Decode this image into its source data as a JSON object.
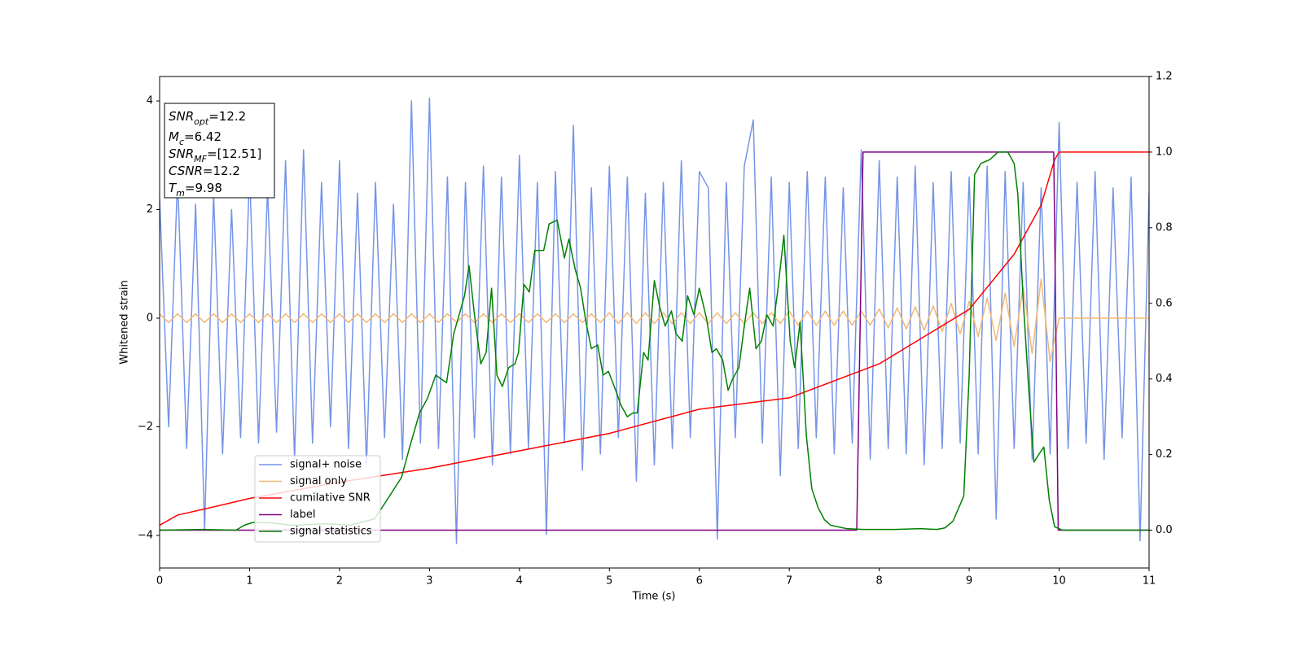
{
  "chart_data": {
    "type": "line",
    "xlabel": "Time (s)",
    "ylabel": "Whitened strain",
    "xlim": [
      0,
      11
    ],
    "xticks": [
      0,
      1,
      2,
      3,
      4,
      5,
      6,
      7,
      8,
      9,
      10,
      11
    ],
    "ylim": [
      -4.6,
      4.45
    ],
    "yticks": [
      {
        "value": -4,
        "label": "−4"
      },
      {
        "value": -2,
        "label": "−2"
      },
      0,
      2,
      4
    ],
    "y2lim": [
      -0.1,
      1.2
    ],
    "y2ticks": [
      {
        "value": 0,
        "label": "0.0"
      },
      {
        "value": 0.2,
        "label": "0.2"
      },
      {
        "value": 0.4,
        "label": "0.4"
      },
      {
        "value": 0.6,
        "label": "0.6"
      },
      {
        "value": 0.8,
        "label": "0.8"
      },
      {
        "value": 1.0,
        "label": "1.0"
      },
      {
        "value": 1.2,
        "label": "1.2"
      }
    ],
    "legend": "lower left",
    "annotations": [
      {
        "symbol": "SNR",
        "subscript": "opt",
        "text": "=12.2"
      },
      {
        "symbol": "M",
        "subscript": "c",
        "text": "=6.42"
      },
      {
        "symbol": "SNR",
        "subscript": "MF",
        "text": "=[12.51]"
      },
      {
        "symbol": "CSNR",
        "text": "=12.2"
      },
      {
        "symbol": "T",
        "subscript": "m",
        "text": "=9.98"
      }
    ],
    "series": [
      {
        "name": "signal+ noise",
        "color": "#7594e8",
        "axis": "y",
        "x": [
          0,
          0.1,
          0.2,
          0.3,
          0.4,
          0.5,
          0.6,
          0.7,
          0.8,
          0.9,
          1,
          1.1,
          1.2,
          1.3,
          1.4,
          1.5,
          1.6,
          1.7,
          1.8,
          1.9,
          2,
          2.1,
          2.2,
          2.3,
          2.4,
          2.5,
          2.6,
          2.7,
          2.8,
          2.9,
          3,
          3.1,
          3.2,
          3.3,
          3.4,
          3.5,
          3.6,
          3.7,
          3.8,
          3.9,
          4,
          4.1,
          4.2,
          4.3,
          4.4,
          4.5,
          4.6,
          4.7,
          4.8,
          4.9,
          5,
          5.1,
          5.2,
          5.3,
          5.4,
          5.5,
          5.6,
          5.7,
          5.8,
          5.9,
          6,
          6.1,
          6.2,
          6.3,
          6.4,
          6.5,
          6.6,
          6.7,
          6.8,
          6.9,
          7,
          7.1,
          7.2,
          7.3,
          7.4,
          7.5,
          7.6,
          7.7,
          7.8,
          7.9,
          8,
          8.1,
          8.2,
          8.3,
          8.4,
          8.5,
          8.6,
          8.7,
          8.8,
          8.9,
          9,
          9.1,
          9.2,
          9.3,
          9.4,
          9.5,
          9.6,
          9.7,
          9.8,
          9.9,
          10,
          10.1,
          10.2,
          10.3,
          10.4,
          10.5,
          10.6,
          10.7,
          10.8,
          10.9,
          11
        ],
        "values": [
          2.2,
          -2.0,
          2.6,
          -2.4,
          2.1,
          -3.9,
          2.3,
          -2.5,
          2.0,
          -2.2,
          2.7,
          -2.3,
          2.4,
          -2.1,
          2.9,
          -2.6,
          3.1,
          -2.3,
          2.5,
          -2.0,
          2.9,
          -2.4,
          2.3,
          -2.7,
          2.5,
          -2.2,
          2.1,
          -2.6,
          4.0,
          -2.3,
          4.05,
          -2.4,
          2.6,
          -4.15,
          2.5,
          -2.2,
          2.8,
          -2.7,
          2.6,
          -2.5,
          3.0,
          -2.4,
          2.5,
          -3.98,
          2.7,
          -2.3,
          3.55,
          -2.8,
          2.4,
          -2.5,
          2.8,
          -2.2,
          2.6,
          -3.0,
          2.3,
          -2.7,
          2.5,
          -2.4,
          2.9,
          -2.2,
          2.7,
          2.4,
          -4.07,
          2.5,
          -2.2,
          2.8,
          3.65,
          -2.3,
          2.6,
          -2.9,
          2.5,
          -2.4,
          2.7,
          -2.2,
          2.6,
          -2.5,
          2.4,
          -2.3,
          3.1,
          -2.6,
          2.9,
          -2.4,
          2.6,
          -2.5,
          2.8,
          -2.7,
          2.5,
          -2.4,
          2.7,
          -2.3,
          2.6,
          -2.5,
          2.8,
          -3.7,
          2.7,
          -2.4,
          2.5,
          -2.6,
          2.4,
          -2.5,
          3.6,
          -2.4,
          2.5,
          -2.3,
          2.7,
          -2.6,
          2.4,
          -2.2,
          2.6,
          -4.1,
          2.3
        ]
      },
      {
        "name": "signal only",
        "color": "#f2b774",
        "axis": "y",
        "x": [
          0,
          0.1,
          0.2,
          0.3,
          0.4,
          0.5,
          0.6,
          0.7,
          0.8,
          0.9,
          1,
          1.1,
          1.2,
          1.3,
          1.4,
          1.5,
          1.6,
          1.7,
          1.8,
          1.9,
          2,
          2.1,
          2.2,
          2.3,
          2.4,
          2.5,
          2.6,
          2.7,
          2.8,
          2.9,
          3,
          3.1,
          3.2,
          3.3,
          3.4,
          3.5,
          3.6,
          3.7,
          3.8,
          3.9,
          4,
          4.1,
          4.2,
          4.3,
          4.4,
          4.5,
          4.6,
          4.7,
          4.8,
          4.9,
          5,
          5.1,
          5.2,
          5.3,
          5.4,
          5.5,
          5.6,
          5.7,
          5.8,
          5.9,
          6,
          6.1,
          6.2,
          6.3,
          6.4,
          6.5,
          6.6,
          6.7,
          6.8,
          6.9,
          7,
          7.1,
          7.2,
          7.3,
          7.4,
          7.5,
          7.6,
          7.7,
          7.8,
          7.9,
          8,
          8.1,
          8.2,
          8.3,
          8.4,
          8.5,
          8.6,
          8.7,
          8.8,
          8.9,
          9,
          9.1,
          9.2,
          9.3,
          9.4,
          9.5,
          9.6,
          9.7,
          9.8,
          9.9,
          10,
          11
        ],
        "values": [
          0.08,
          -0.08,
          0.08,
          -0.08,
          0.08,
          -0.08,
          0.08,
          -0.08,
          0.08,
          -0.08,
          0.08,
          -0.08,
          0.08,
          -0.08,
          0.08,
          -0.08,
          0.08,
          -0.08,
          0.08,
          -0.08,
          0.08,
          -0.08,
          0.08,
          -0.08,
          0.08,
          -0.08,
          0.08,
          -0.08,
          0.08,
          -0.08,
          0.08,
          -0.08,
          0.08,
          -0.08,
          0.08,
          -0.08,
          0.08,
          -0.08,
          0.08,
          -0.08,
          0.08,
          -0.08,
          0.08,
          -0.08,
          0.08,
          -0.08,
          0.08,
          -0.08,
          0.08,
          -0.08,
          0.1,
          -0.1,
          0.1,
          -0.1,
          0.1,
          -0.1,
          0.1,
          -0.1,
          0.1,
          -0.1,
          0.1,
          -0.1,
          0.1,
          -0.1,
          0.1,
          -0.1,
          0.1,
          -0.1,
          0.1,
          -0.1,
          0.13,
          -0.13,
          0.13,
          -0.13,
          0.13,
          -0.13,
          0.13,
          -0.13,
          0.13,
          -0.13,
          0.17,
          -0.18,
          0.19,
          -0.2,
          0.21,
          -0.22,
          0.23,
          -0.25,
          0.27,
          -0.29,
          0.31,
          -0.34,
          0.37,
          -0.41,
          0.46,
          -0.52,
          0.58,
          -0.65,
          0.72,
          -0.8,
          0,
          0
        ]
      },
      {
        "name": "cumilative SNR",
        "color": "#ff0000",
        "axis": "y2",
        "x": [
          0,
          0.2,
          0.5,
          1,
          2,
          3,
          4,
          5,
          6,
          7,
          8,
          9,
          9.5,
          9.8,
          9.95,
          10,
          11
        ],
        "values": [
          0.013,
          0.04,
          0.056,
          0.084,
          0.127,
          0.164,
          0.21,
          0.256,
          0.32,
          0.35,
          0.44,
          0.584,
          0.73,
          0.86,
          0.98,
          1.0,
          1.0
        ]
      },
      {
        "name": "label",
        "color": "#800080",
        "axis": "y2",
        "x": [
          0,
          7.75,
          7.82,
          9.94,
          9.99,
          11
        ],
        "values": [
          0,
          0,
          1,
          1,
          0,
          0
        ]
      },
      {
        "name": "signal statistics",
        "color": "#008000",
        "axis": "y2",
        "x": [
          0,
          0.49,
          0.85,
          0.94,
          1.03,
          1.21,
          1.48,
          1.85,
          2.12,
          2.39,
          2.55,
          2.69,
          2.78,
          2.89,
          2.98,
          3.07,
          3.19,
          3.27,
          3.39,
          3.44,
          3.5,
          3.57,
          3.63,
          3.69,
          3.75,
          3.81,
          3.88,
          3.95,
          3.99,
          4.05,
          4.11,
          4.17,
          4.27,
          4.33,
          4.42,
          4.5,
          4.55,
          4.62,
          4.68,
          4.74,
          4.8,
          4.87,
          4.93,
          4.99,
          5.07,
          5.13,
          5.2,
          5.26,
          5.31,
          5.38,
          5.43,
          5.5,
          5.56,
          5.62,
          5.69,
          5.74,
          5.81,
          5.87,
          5.94,
          6.0,
          6.08,
          6.14,
          6.19,
          6.26,
          6.32,
          6.37,
          6.44,
          6.5,
          6.56,
          6.63,
          6.69,
          6.75,
          6.82,
          6.87,
          6.94,
          7.01,
          7.06,
          7.12,
          7.19,
          7.25,
          7.32,
          7.39,
          7.46,
          7.64,
          7.82,
          8.18,
          8.46,
          8.64,
          8.73,
          8.82,
          8.94,
          9.0,
          9.06,
          9.13,
          9.23,
          9.32,
          9.43,
          9.5,
          9.54,
          9.6,
          9.66,
          9.72,
          9.8,
          9.83,
          9.89,
          9.95,
          10.04,
          11
        ],
        "values": [
          0,
          0.002,
          0,
          0.013,
          0.02,
          0.02,
          0.013,
          0.017,
          0.013,
          0.03,
          0.088,
          0.14,
          0.22,
          0.31,
          0.35,
          0.41,
          0.39,
          0.52,
          0.62,
          0.7,
          0.57,
          0.44,
          0.47,
          0.64,
          0.41,
          0.38,
          0.43,
          0.44,
          0.47,
          0.65,
          0.63,
          0.74,
          0.74,
          0.81,
          0.82,
          0.72,
          0.77,
          0.69,
          0.64,
          0.55,
          0.48,
          0.49,
          0.41,
          0.42,
          0.37,
          0.33,
          0.3,
          0.31,
          0.31,
          0.47,
          0.45,
          0.66,
          0.59,
          0.54,
          0.58,
          0.52,
          0.5,
          0.62,
          0.57,
          0.64,
          0.56,
          0.47,
          0.48,
          0.45,
          0.37,
          0.4,
          0.43,
          0.54,
          0.64,
          0.48,
          0.5,
          0.57,
          0.54,
          0.63,
          0.78,
          0.5,
          0.43,
          0.55,
          0.25,
          0.11,
          0.06,
          0.028,
          0.013,
          0.004,
          0.002,
          0.002,
          0.004,
          0.002,
          0.006,
          0.024,
          0.09,
          0.41,
          0.94,
          0.97,
          0.98,
          1.0,
          1.0,
          0.97,
          0.89,
          0.61,
          0.38,
          0.18,
          0.21,
          0.22,
          0.08,
          0.009,
          0,
          0
        ]
      }
    ]
  }
}
